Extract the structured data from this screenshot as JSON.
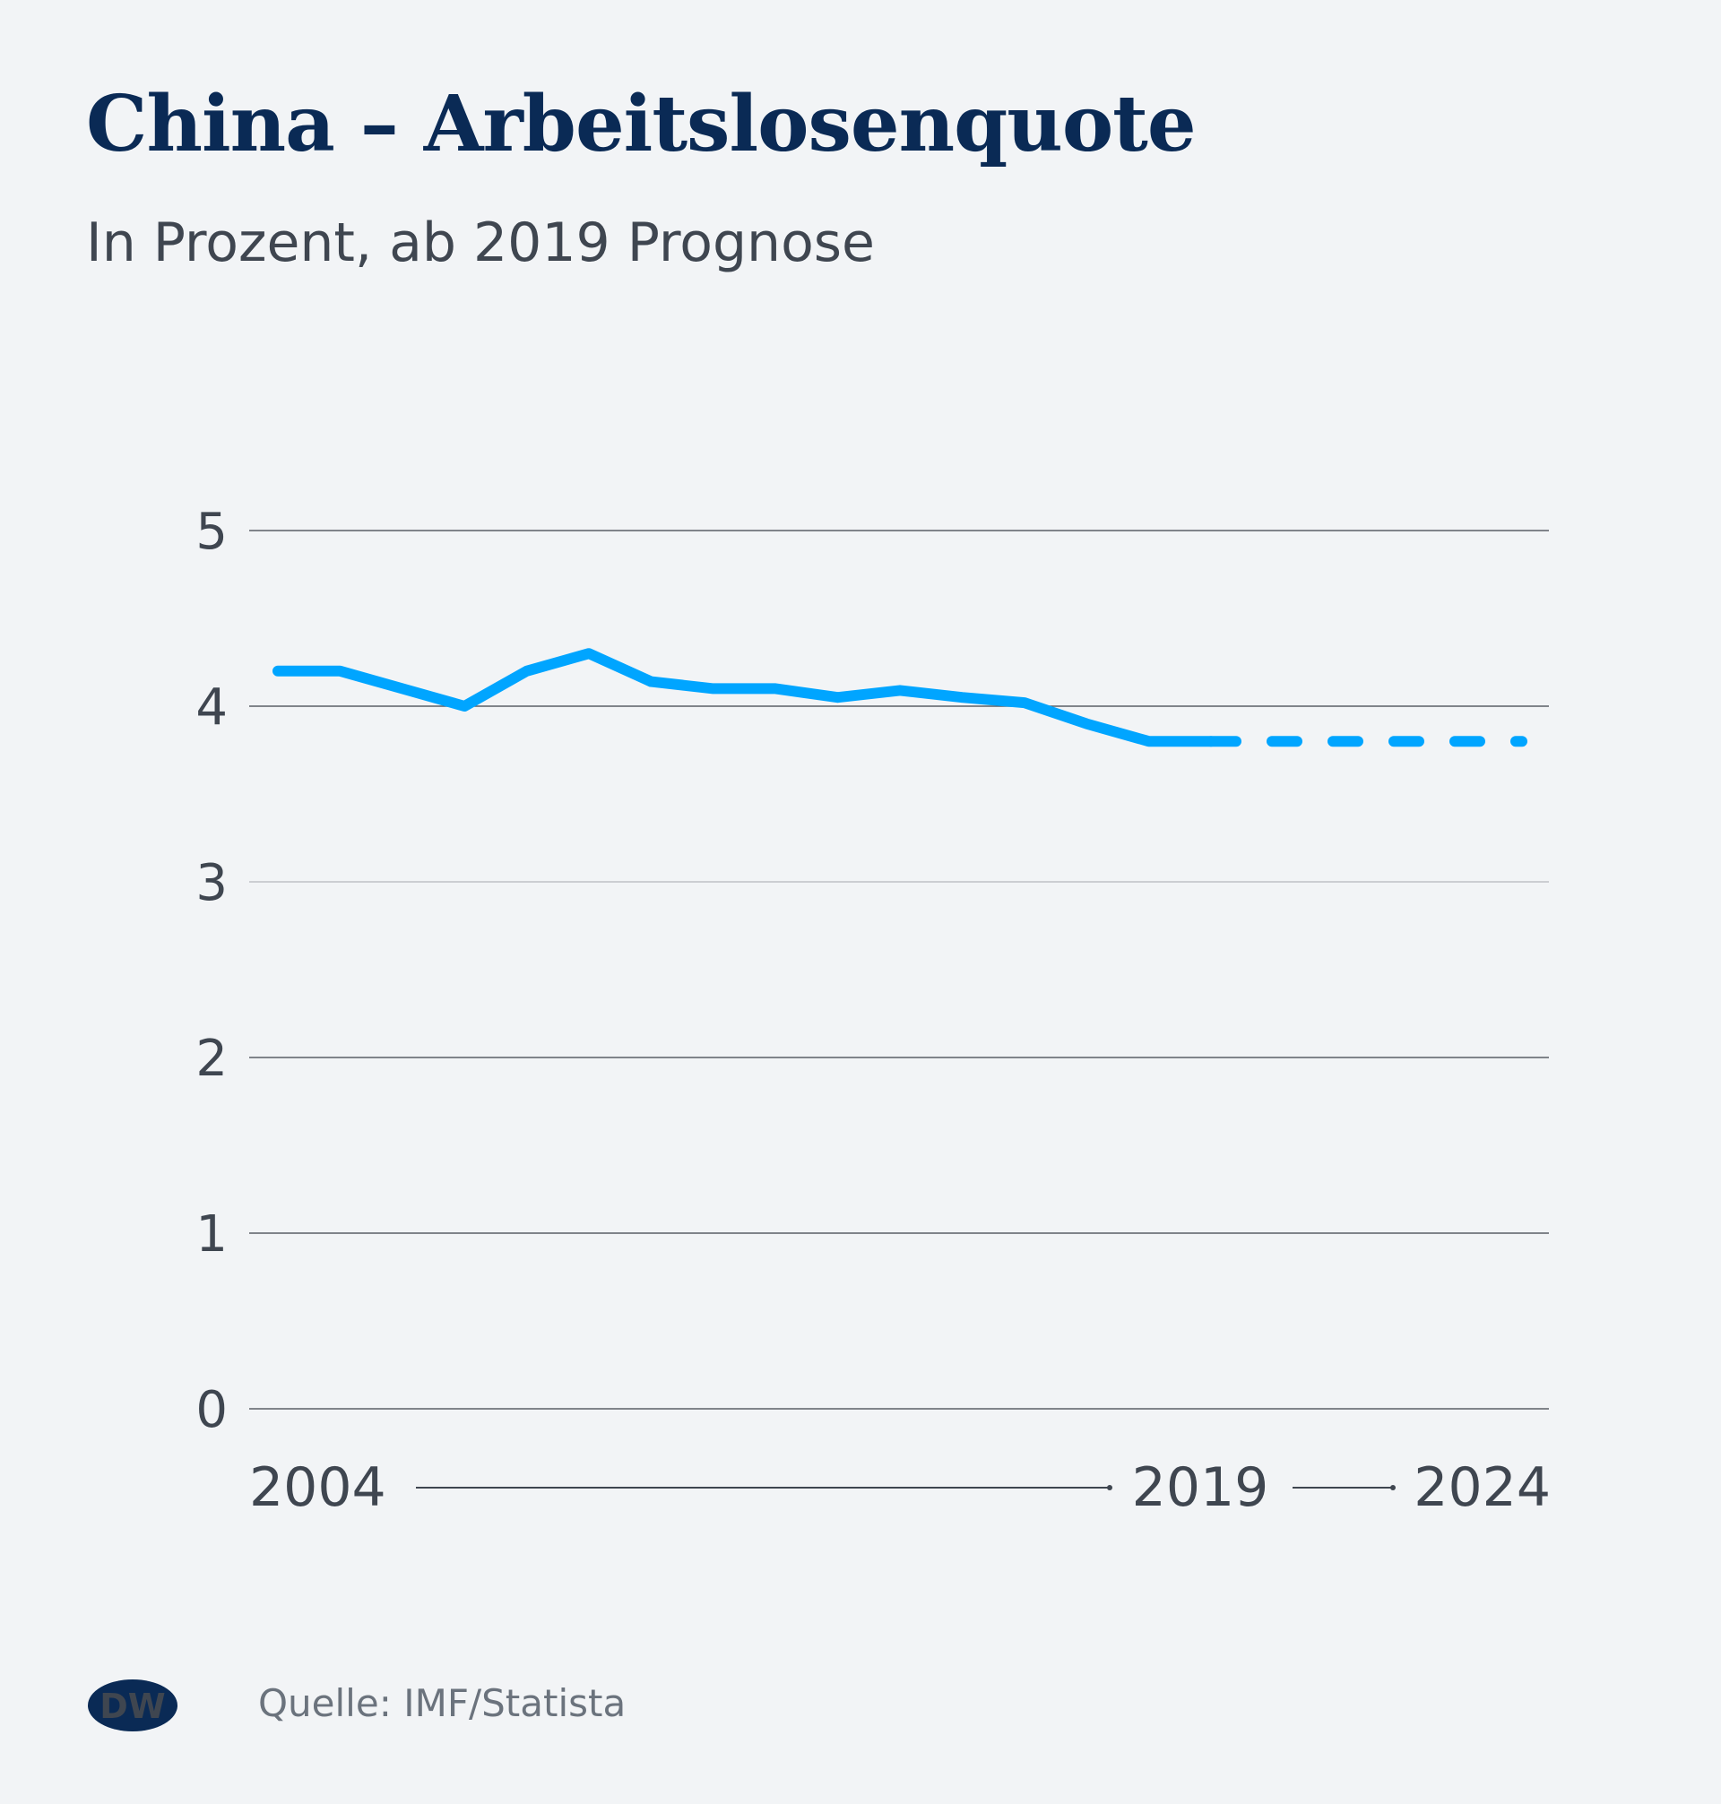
{
  "header": {
    "title": "China – Arbeitslosenquote",
    "subtitle": "In Prozent, ab 2019 Prognose"
  },
  "footer": {
    "logo_text": "DW",
    "source": "Quelle: IMF/Statista"
  },
  "colors": {
    "background": "#f2f4f6",
    "title": "#0a2a55",
    "line": "#00a5ff",
    "grid": "#5a5f66",
    "text": "#3f4650"
  },
  "chart_data": {
    "type": "line",
    "title": "China – Arbeitslosenquote",
    "subtitle": "In Prozent, ab 2019 Prognose",
    "xlabel": "",
    "ylabel": "",
    "ylim": [
      0,
      5
    ],
    "xlim": [
      2004,
      2024
    ],
    "yticks": [
      "0",
      "1",
      "2",
      "3",
      "4",
      "5"
    ],
    "xticks": [
      "2004",
      "2019",
      "2024"
    ],
    "grid": true,
    "x": [
      2004,
      2005,
      2006,
      2007,
      2008,
      2009,
      2010,
      2011,
      2012,
      2013,
      2014,
      2015,
      2016,
      2017,
      2018,
      2019,
      2020,
      2021,
      2022,
      2023,
      2024
    ],
    "series": [
      {
        "style": "solid",
        "x": [
          2004,
          2005,
          2006,
          2007,
          2008,
          2009,
          2010,
          2011,
          2012,
          2013,
          2014,
          2015,
          2016,
          2017,
          2018,
          2019
        ],
        "values": [
          4.2,
          4.2,
          4.1,
          4.0,
          4.2,
          4.3,
          4.14,
          4.1,
          4.1,
          4.05,
          4.09,
          4.05,
          4.02,
          3.9,
          3.8,
          3.8
        ]
      },
      {
        "style": "dashed",
        "x": [
          2019,
          2020,
          2021,
          2022,
          2023,
          2024
        ],
        "values": [
          3.8,
          3.8,
          3.8,
          3.8,
          3.8,
          3.8
        ]
      }
    ]
  }
}
